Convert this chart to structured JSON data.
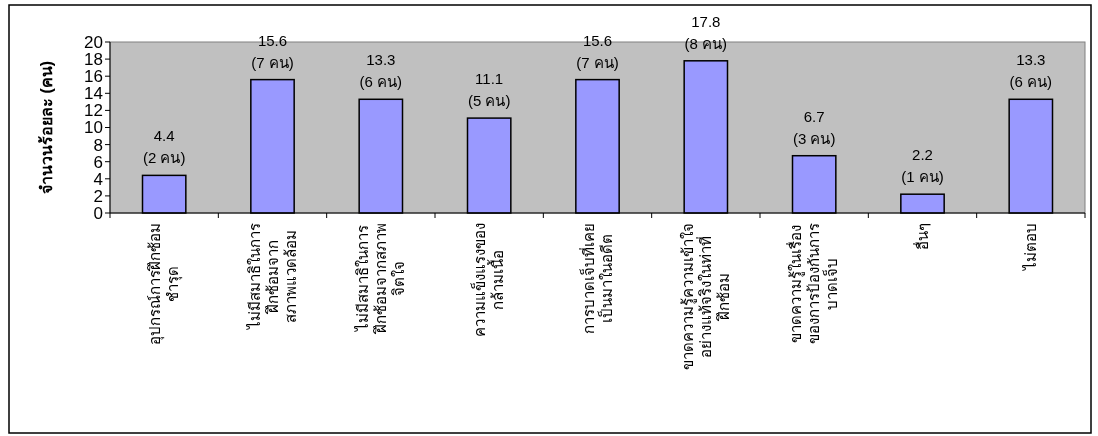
{
  "chart_data": {
    "type": "bar",
    "ylabel": "จำนวนร้อยละ (คน)",
    "categories": [
      "อุปกรณ์การฝึกซ้อม\nชำรุด",
      "ไม่มีสมาธิในการ\nฝึกซ้อมจาก\nสภาพแวดล้อม",
      "ไม่มีสมาธิในการ\nฝึกซ้อมจากสภาพ\nจิตใจ",
      "ความแข็งแรงของ\nกล้ามเนื้อ",
      "การบาดเจ็บที่เคย\nเป็นมาในอดีต",
      "ขาดความรู้ความเข้าใจ\nอย่างแท้จริงในท่าที่\nฝึกซ้อม",
      "ขาดความรู้ในเรื่อง\nของการป้องกันการ\nบาดเจ็บ",
      "อื่นๆ",
      "ไม่ตอบ"
    ],
    "values": [
      4.4,
      15.6,
      13.3,
      11.1,
      15.6,
      17.8,
      6.7,
      2.2,
      13.3
    ],
    "value_labels": [
      "4.4\n(2 คน)",
      "15.6\n(7 คน)",
      "13.3\n(6 คน)",
      "11.1\n(5 คน)",
      "15.6\n(7 คน)",
      "17.8\n(8 คน)",
      "6.7\n(3 คน)",
      "2.2\n(1 คน)",
      "13.3\n(6 คน)"
    ],
    "color": "#9999ff",
    "ylim": [
      0,
      20
    ],
    "yticks": [
      0,
      2,
      4,
      6,
      8,
      10,
      12,
      14,
      16,
      18,
      20
    ],
    "grid": false
  }
}
